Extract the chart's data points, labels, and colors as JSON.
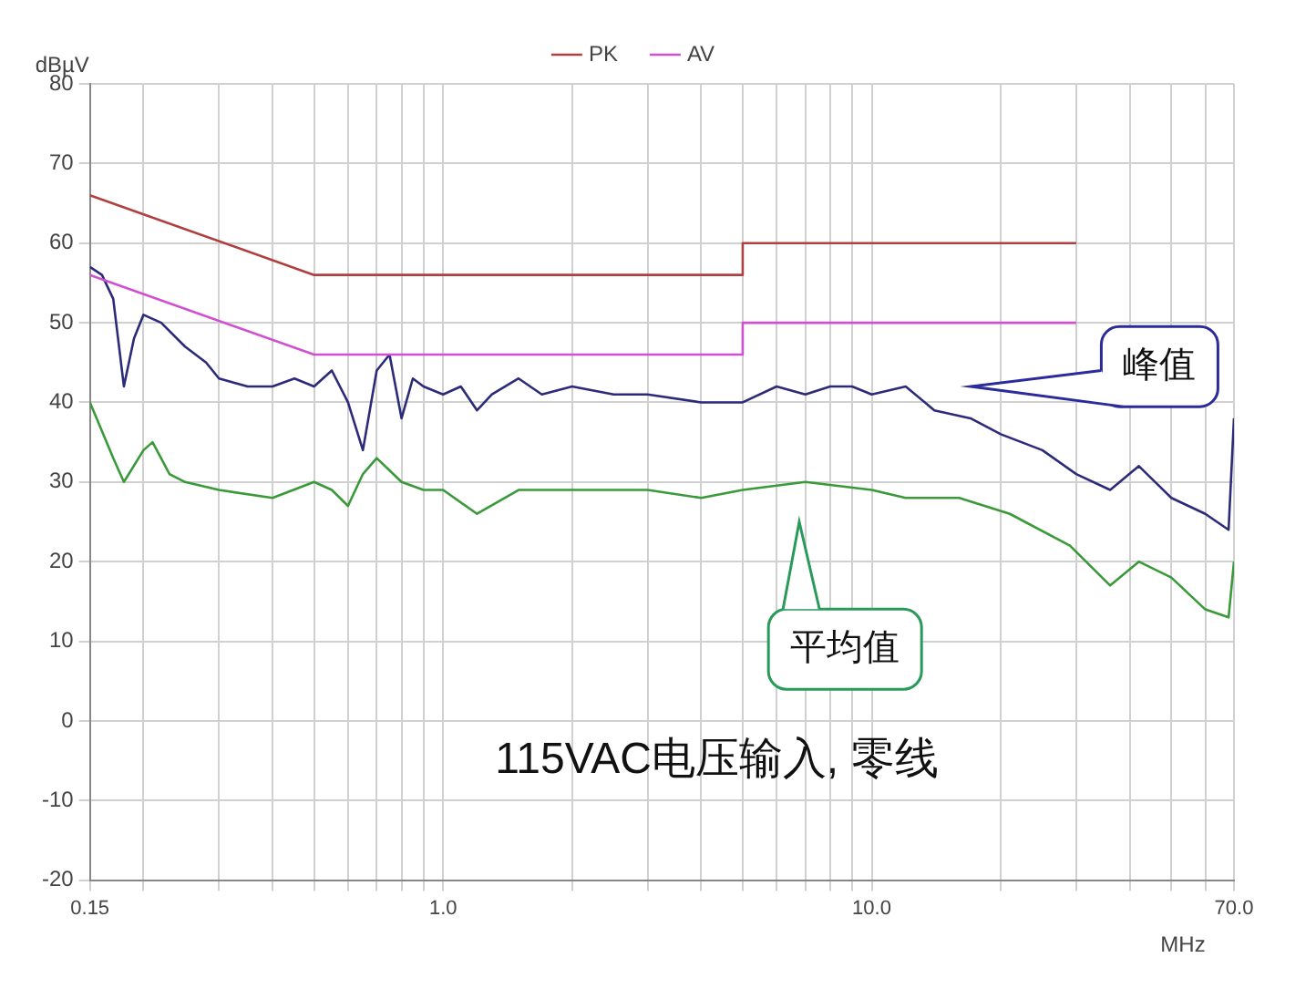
{
  "chart_data": {
    "type": "line",
    "ylabel": "dBµV",
    "xlabel": "MHz",
    "log": "x",
    "grid": true,
    "legend": "top",
    "marker": "none",
    "line_style": "solid",
    "xlim": [
      0.15,
      70
    ],
    "ylim": [
      -20,
      80
    ],
    "xticks": [
      {
        "value": 0.15,
        "label": "0.15"
      },
      {
        "value": 0.2,
        "label": null
      },
      {
        "value": 0.3,
        "label": null
      },
      {
        "value": 0.4,
        "label": null
      },
      {
        "value": 0.5,
        "label": null
      },
      {
        "value": 0.6,
        "label": null
      },
      {
        "value": 0.7,
        "label": null
      },
      {
        "value": 0.8,
        "label": null
      },
      {
        "value": 0.9,
        "label": null
      },
      {
        "value": 1,
        "label": "1.0"
      },
      {
        "value": 2,
        "label": null
      },
      {
        "value": 3,
        "label": null
      },
      {
        "value": 4,
        "label": null
      },
      {
        "value": 5,
        "label": null
      },
      {
        "value": 6,
        "label": null
      },
      {
        "value": 7,
        "label": null
      },
      {
        "value": 8,
        "label": null
      },
      {
        "value": 9,
        "label": null
      },
      {
        "value": 10,
        "label": "10.0"
      },
      {
        "value": 20,
        "label": null
      },
      {
        "value": 30,
        "label": null
      },
      {
        "value": 40,
        "label": null
      },
      {
        "value": 50,
        "label": null
      },
      {
        "value": 60,
        "label": null
      },
      {
        "value": 70,
        "label": "70.0"
      }
    ],
    "yticks": [
      -20,
      -10,
      0,
      10,
      20,
      30,
      40,
      50,
      60,
      70,
      80
    ],
    "series": [
      {
        "name": "PK",
        "color": "#b04040",
        "x": [
          0.15,
          0.5,
          5,
          5,
          30
        ],
        "values": [
          66,
          56,
          56,
          60,
          60
        ]
      },
      {
        "name": "AV",
        "color": "#d050d0",
        "x": [
          0.15,
          0.5,
          5,
          5,
          30
        ],
        "values": [
          56,
          46,
          46,
          50,
          50
        ]
      },
      {
        "color": "#2b2b7a",
        "x": [
          0.15,
          0.16,
          0.17,
          0.18,
          0.19,
          0.2,
          0.22,
          0.25,
          0.28,
          0.3,
          0.35,
          0.4,
          0.45,
          0.5,
          0.55,
          0.6,
          0.65,
          0.7,
          0.75,
          0.8,
          0.85,
          0.9,
          1,
          1.1,
          1.2,
          1.3,
          1.5,
          1.7,
          2,
          2.5,
          3,
          4,
          5,
          6,
          7,
          8,
          9,
          10,
          12,
          14,
          17,
          20,
          25,
          30,
          36,
          42,
          50,
          60,
          68,
          70
        ],
        "values": [
          57,
          56,
          53,
          42,
          48,
          51,
          50,
          47,
          45,
          43,
          42,
          42,
          43,
          42,
          44,
          40,
          34,
          44,
          46,
          38,
          43,
          42,
          41,
          42,
          39,
          41,
          43,
          41,
          42,
          41,
          41,
          40,
          40,
          42,
          41,
          42,
          42,
          41,
          42,
          39,
          38,
          36,
          34,
          31,
          29,
          32,
          28,
          26,
          24,
          38
        ]
      },
      {
        "color": "#3a9a3a",
        "x": [
          0.15,
          0.17,
          0.18,
          0.2,
          0.21,
          0.23,
          0.25,
          0.3,
          0.4,
          0.5,
          0.55,
          0.6,
          0.65,
          0.7,
          0.8,
          0.9,
          1,
          1.2,
          1.5,
          2,
          3,
          4,
          5,
          7,
          10,
          12,
          16,
          21,
          29,
          36,
          42,
          50,
          60,
          68,
          70
        ],
        "values": [
          40,
          33,
          30,
          34,
          35,
          31,
          30,
          29,
          28,
          30,
          29,
          27,
          31,
          33,
          30,
          29,
          29,
          26,
          29,
          29,
          29,
          28,
          29,
          30,
          29,
          28,
          28,
          26,
          22,
          17,
          20,
          18,
          14,
          13,
          20
        ]
      }
    ],
    "annotations": [
      "峰值",
      "平均值",
      "115VAC电压输入, 零线"
    ]
  }
}
